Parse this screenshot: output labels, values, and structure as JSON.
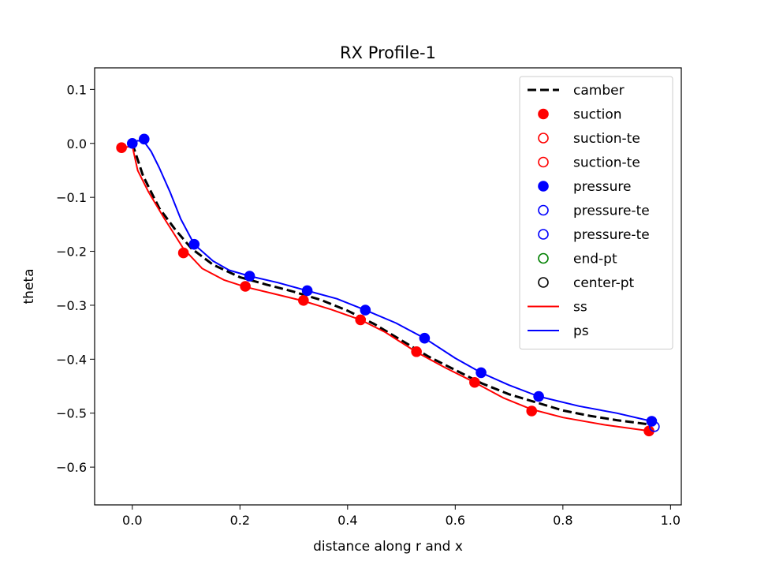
{
  "chart_data": {
    "type": "scatter",
    "title": "RX Profile-1",
    "xlabel": "distance along r and x",
    "ylabel": "theta",
    "xlim": [
      -0.07,
      1.02
    ],
    "ylim": [
      -0.67,
      0.14
    ],
    "x_ticks": [
      0.0,
      0.2,
      0.4,
      0.6,
      0.8,
      1.0
    ],
    "x_tick_labels": [
      "0.0",
      "0.2",
      "0.4",
      "0.6",
      "0.8",
      "1.0"
    ],
    "y_ticks": [
      0.1,
      0.0,
      -0.1,
      -0.2,
      -0.3,
      -0.4,
      -0.5,
      -0.6
    ],
    "y_tick_labels": [
      "0.1",
      "0.0",
      "−0.1",
      "−0.2",
      "−0.3",
      "−0.4",
      "−0.5",
      "−0.6"
    ],
    "grid": false,
    "legend_position": "top-right",
    "series": [
      {
        "name": "camber",
        "kind": "line",
        "style": "dashed",
        "color": "#000000",
        "x": [
          0.0,
          0.02,
          0.05,
          0.08,
          0.11,
          0.15,
          0.2,
          0.25,
          0.3,
          0.35,
          0.4,
          0.45,
          0.5,
          0.55,
          0.6,
          0.65,
          0.7,
          0.75,
          0.8,
          0.85,
          0.9,
          0.97
        ],
        "y": [
          0.0,
          -0.06,
          -0.12,
          -0.16,
          -0.195,
          -0.225,
          -0.248,
          -0.262,
          -0.275,
          -0.29,
          -0.31,
          -0.335,
          -0.365,
          -0.395,
          -0.42,
          -0.445,
          -0.465,
          -0.48,
          -0.495,
          -0.505,
          -0.513,
          -0.522
        ]
      },
      {
        "name": "suction",
        "kind": "marker",
        "filled": true,
        "color": "#ff0000",
        "x": [
          -0.02,
          0.095,
          0.21,
          0.318,
          0.424,
          0.528,
          0.636,
          0.742,
          0.96
        ],
        "y": [
          -0.008,
          -0.203,
          -0.265,
          -0.291,
          -0.327,
          -0.386,
          -0.443,
          -0.496,
          -0.533
        ]
      },
      {
        "name": "suction-te",
        "kind": "marker",
        "filled": false,
        "color": "#ff0000",
        "x": [],
        "y": []
      },
      {
        "name": "suction-te",
        "kind": "marker",
        "filled": false,
        "color": "#ff0000",
        "x": [],
        "y": []
      },
      {
        "name": "pressure",
        "kind": "marker",
        "filled": true,
        "color": "#0000ff",
        "x": [
          0.0,
          0.022,
          0.115,
          0.218,
          0.325,
          0.433,
          0.543,
          0.648,
          0.755,
          0.965
        ],
        "y": [
          0.0,
          0.008,
          -0.187,
          -0.246,
          -0.273,
          -0.309,
          -0.361,
          -0.425,
          -0.469,
          -0.515
        ]
      },
      {
        "name": "pressure-te",
        "kind": "marker",
        "filled": false,
        "color": "#0000ff",
        "x": [
          0.97
        ],
        "y": [
          -0.525
        ]
      },
      {
        "name": "pressure-te",
        "kind": "marker",
        "filled": false,
        "color": "#0000ff",
        "x": [],
        "y": []
      },
      {
        "name": "end-pt",
        "kind": "marker",
        "filled": false,
        "color": "#008000",
        "x": [],
        "y": []
      },
      {
        "name": "center-pt",
        "kind": "marker",
        "filled": false,
        "color": "#000000",
        "x": [],
        "y": []
      },
      {
        "name": "ss",
        "kind": "line",
        "style": "solid",
        "color": "#ff0000",
        "x": [
          -0.02,
          -0.005,
          0.0,
          0.01,
          0.03,
          0.06,
          0.095,
          0.13,
          0.17,
          0.21,
          0.26,
          0.318,
          0.37,
          0.424,
          0.47,
          0.528,
          0.58,
          0.636,
          0.69,
          0.742,
          0.8,
          0.88,
          0.96
        ],
        "y": [
          -0.008,
          -0.006,
          -0.005,
          -0.05,
          -0.09,
          -0.14,
          -0.195,
          -0.232,
          -0.253,
          -0.266,
          -0.278,
          -0.292,
          -0.308,
          -0.327,
          -0.35,
          -0.387,
          -0.415,
          -0.443,
          -0.472,
          -0.493,
          -0.508,
          -0.522,
          -0.533
        ]
      },
      {
        "name": "ps",
        "kind": "line",
        "style": "solid",
        "color": "#0000ff",
        "x": [
          0.0,
          0.01,
          0.022,
          0.035,
          0.05,
          0.07,
          0.09,
          0.115,
          0.15,
          0.18,
          0.218,
          0.27,
          0.325,
          0.38,
          0.433,
          0.49,
          0.543,
          0.6,
          0.648,
          0.7,
          0.755,
          0.83,
          0.9,
          0.965
        ],
        "y": [
          0.0,
          0.005,
          0.003,
          -0.015,
          -0.045,
          -0.09,
          -0.14,
          -0.187,
          -0.218,
          -0.235,
          -0.246,
          -0.258,
          -0.273,
          -0.288,
          -0.309,
          -0.333,
          -0.361,
          -0.398,
          -0.425,
          -0.448,
          -0.469,
          -0.487,
          -0.5,
          -0.515
        ]
      }
    ]
  }
}
